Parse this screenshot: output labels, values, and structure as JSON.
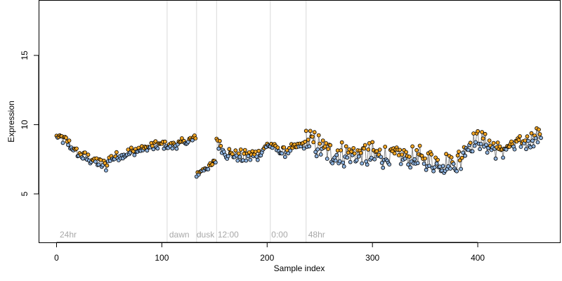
{
  "chart_data": {
    "type": "scatter",
    "title": "",
    "xlabel": "Sample index",
    "ylabel": "Expression",
    "xlim": [
      -17,
      478
    ],
    "ylim": [
      1.5,
      19.0
    ],
    "xticks": [
      0,
      100,
      200,
      300,
      400
    ],
    "xtick_labels": [
      "0",
      "100",
      "200",
      "300",
      "400"
    ],
    "yticks": [
      5,
      10,
      15
    ],
    "ytick_labels": [
      "5",
      "10",
      "15"
    ],
    "grid": false,
    "legend": "none",
    "colors": {
      "above_median": "#f5a623",
      "below_median": "#8fb4e0",
      "connector": "#8a8a8a",
      "point_edge": "#000000",
      "divider": "#d9d9d9",
      "region_label": "#a8a8a8"
    },
    "region_dividers": [
      105,
      133,
      152,
      203,
      237
    ],
    "region_labels": [
      {
        "x": 3,
        "label": "24hr"
      },
      {
        "x": 107,
        "label": "dawn"
      },
      {
        "x": 133,
        "label": "dusk"
      },
      {
        "x": 153,
        "label": "12:00"
      },
      {
        "x": 204,
        "label": "0:00"
      },
      {
        "x": 239,
        "label": "48hr"
      }
    ],
    "series": [
      {
        "n": 460,
        "segments": [
          {
            "x": [
              0,
              8,
              20,
              35,
              48
            ],
            "y": [
              9.1,
              8.9,
              7.9,
              7.4,
              7.0
            ],
            "noise": 0.3
          },
          {
            "x": [
              49,
              70,
              90,
              104
            ],
            "y": [
              7.5,
              8.0,
              8.4,
              8.6
            ],
            "noise": 0.3
          },
          {
            "x": [
              105,
              120,
              132
            ],
            "y": [
              8.4,
              8.7,
              9.0
            ],
            "noise": 0.25
          },
          {
            "x": [
              133,
              140,
              148,
              151
            ],
            "y": [
              6.4,
              6.8,
              7.1,
              7.4
            ],
            "noise": 0.2
          },
          {
            "x": [
              152,
              160,
              175,
              190,
              202
            ],
            "y": [
              8.9,
              8.0,
              7.7,
              7.8,
              8.6
            ],
            "noise": 0.4
          },
          {
            "x": [
              203,
              215,
              236
            ],
            "y": [
              8.5,
              8.0,
              8.6
            ],
            "noise": 0.3
          },
          {
            "x": [
              237,
              260,
              300,
              340,
              370,
              385
            ],
            "y": [
              9.0,
              7.9,
              7.8,
              7.6,
              7.2,
              7.4
            ],
            "noise": 0.75
          },
          {
            "x": [
              386,
              400,
              420,
              440,
              460
            ],
            "y": [
              8.2,
              9.0,
              8.1,
              8.6,
              9.3
            ],
            "noise": 0.55
          }
        ]
      }
    ]
  }
}
